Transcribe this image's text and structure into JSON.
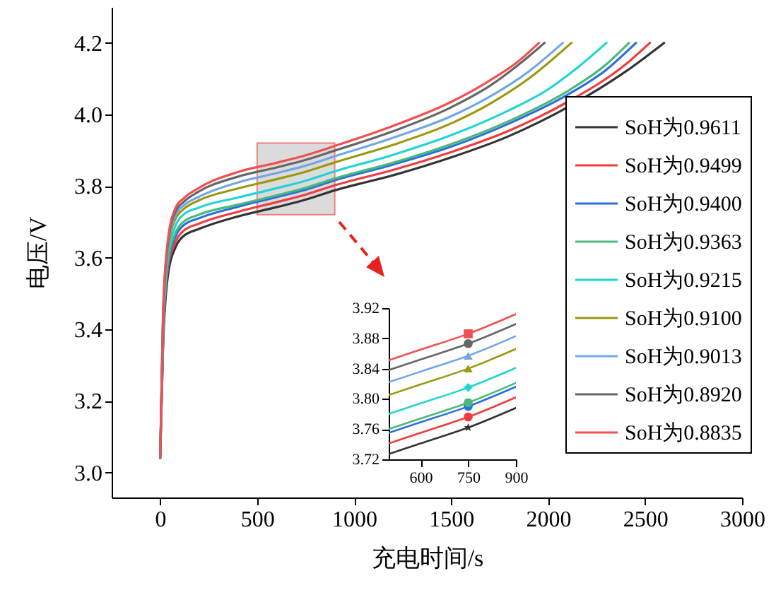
{
  "chart_data": [
    {
      "type": "line",
      "xlabel": "充电时间/s",
      "ylabel": "电压/V",
      "xlim": [
        -250,
        3000
      ],
      "ylim": [
        2.93,
        4.3
      ],
      "xticks": [
        0,
        500,
        1000,
        1500,
        2000,
        2500,
        3000
      ],
      "yticks": [
        {
          "value": 3,
          "label": "3.0"
        },
        3.2,
        3.4,
        3.6,
        3.8,
        {
          "value": 4,
          "label": "4.0"
        },
        4.2
      ],
      "grid": false,
      "legend": "right",
      "series": [
        {
          "name": "SoH为0.9611",
          "color": "#333333",
          "x": [
            0,
            15,
            40,
            80,
            120,
            200,
            400,
            600,
            750,
            900,
            1200,
            1500,
            1800,
            2100,
            2400,
            2598
          ],
          "values": [
            3.04,
            3.35,
            3.55,
            3.63,
            3.66,
            3.68,
            3.715,
            3.741,
            3.762,
            3.788,
            3.83,
            3.88,
            3.94,
            4.02,
            4.12,
            4.2
          ]
        },
        {
          "name": "SoH为0.9499",
          "color": "#f03c3c",
          "x": [
            0,
            15,
            40,
            80,
            120,
            200,
            400,
            600,
            750,
            900,
            1200,
            1500,
            1800,
            2100,
            2400,
            2525
          ],
          "values": [
            3.04,
            3.37,
            3.57,
            3.645,
            3.675,
            3.695,
            3.728,
            3.755,
            3.776,
            3.802,
            3.845,
            3.895,
            3.955,
            4.035,
            4.14,
            4.2
          ]
        },
        {
          "name": "SoH为0.9400",
          "color": "#2a6fe0",
          "x": [
            0,
            15,
            40,
            80,
            120,
            200,
            400,
            600,
            750,
            900,
            1200,
            1500,
            1800,
            2100,
            2300,
            2453
          ],
          "values": [
            3.04,
            3.38,
            3.58,
            3.66,
            3.69,
            3.71,
            3.742,
            3.769,
            3.79,
            3.816,
            3.86,
            3.91,
            3.975,
            4.055,
            4.125,
            4.2
          ]
        },
        {
          "name": "SoH为0.9363",
          "color": "#4cb87a",
          "x": [
            0,
            15,
            40,
            80,
            120,
            200,
            400,
            600,
            750,
            900,
            1200,
            1500,
            1800,
            2100,
            2300,
            2417
          ],
          "values": [
            3.04,
            3.39,
            3.59,
            3.67,
            3.7,
            3.72,
            3.748,
            3.774,
            3.795,
            3.821,
            3.865,
            3.917,
            3.982,
            4.065,
            4.14,
            4.2
          ]
        },
        {
          "name": "SoH为0.9215",
          "color": "#22d4d4",
          "x": [
            0,
            15,
            40,
            80,
            120,
            200,
            400,
            600,
            750,
            900,
            1200,
            1500,
            1800,
            2000,
            2150,
            2301
          ],
          "values": [
            3.04,
            3.4,
            3.6,
            3.69,
            3.72,
            3.74,
            3.768,
            3.794,
            3.815,
            3.841,
            3.887,
            3.942,
            4.012,
            4.07,
            4.13,
            4.2
          ]
        },
        {
          "name": "SoH为0.9100",
          "color": "#9a9a10",
          "x": [
            0,
            15,
            40,
            80,
            120,
            200,
            400,
            600,
            750,
            900,
            1200,
            1500,
            1700,
            1900,
            2120
          ],
          "values": [
            3.04,
            3.42,
            3.62,
            3.71,
            3.735,
            3.76,
            3.793,
            3.819,
            3.84,
            3.866,
            3.915,
            3.975,
            4.03,
            4.1,
            4.2
          ]
        },
        {
          "name": "SoH为0.9013",
          "color": "#72a6e6",
          "x": [
            0,
            15,
            40,
            80,
            120,
            200,
            400,
            600,
            750,
            900,
            1200,
            1500,
            1700,
            1900,
            2076
          ],
          "values": [
            3.04,
            3.43,
            3.63,
            3.72,
            3.745,
            3.77,
            3.81,
            3.836,
            3.857,
            3.883,
            3.935,
            3.995,
            4.05,
            4.12,
            4.2
          ]
        },
        {
          "name": "SoH为0.8920",
          "color": "#666666",
          "x": [
            0,
            15,
            40,
            80,
            120,
            200,
            400,
            600,
            750,
            900,
            1200,
            1500,
            1700,
            1850,
            1982
          ],
          "values": [
            3.04,
            3.44,
            3.64,
            3.73,
            3.755,
            3.785,
            3.826,
            3.852,
            3.873,
            3.899,
            3.953,
            4.02,
            4.08,
            4.14,
            4.2
          ]
        },
        {
          "name": "SoH为0.8835",
          "color": "#f05050",
          "x": [
            0,
            15,
            40,
            80,
            120,
            200,
            400,
            600,
            750,
            900,
            1200,
            1500,
            1700,
            1850,
            1953
          ],
          "values": [
            3.04,
            3.45,
            3.65,
            3.74,
            3.765,
            3.795,
            3.839,
            3.865,
            3.886,
            3.912,
            3.968,
            4.035,
            4.095,
            4.15,
            4.2
          ]
        }
      ]
    },
    {
      "type": "line",
      "x": [
        500,
        600,
        750,
        900
      ],
      "xlim": [
        500,
        900
      ],
      "ylim": [
        3.72,
        3.92
      ],
      "xticks": [
        600,
        750,
        900
      ],
      "yticks": [
        3.72,
        3.76,
        {
          "value": 3.8,
          "label": "3.80"
        },
        3.84,
        3.88,
        3.92
      ],
      "grid": false,
      "series": [
        {
          "color": "#333333",
          "values": [
            3.727,
            3.741,
            3.762,
            3.788
          ]
        },
        {
          "color": "#f03c3c",
          "values": [
            3.741,
            3.755,
            3.776,
            3.802
          ]
        },
        {
          "color": "#2a6fe0",
          "values": [
            3.755,
            3.769,
            3.79,
            3.816
          ]
        },
        {
          "color": "#4cb87a",
          "values": [
            3.76,
            3.774,
            3.795,
            3.821
          ]
        },
        {
          "color": "#22d4d4",
          "values": [
            3.78,
            3.794,
            3.815,
            3.841
          ]
        },
        {
          "color": "#9a9a10",
          "values": [
            3.805,
            3.819,
            3.84,
            3.866
          ]
        },
        {
          "color": "#72a6e6",
          "values": [
            3.822,
            3.836,
            3.857,
            3.883
          ]
        },
        {
          "color": "#666666",
          "values": [
            3.838,
            3.852,
            3.873,
            3.899
          ]
        },
        {
          "color": "#f05050",
          "values": [
            3.851,
            3.865,
            3.886,
            3.912
          ]
        },
        {
          "type": "scatter",
          "marker": "star",
          "color": "#333333",
          "x": [
            750
          ],
          "values": [
            3.762
          ]
        },
        {
          "type": "scatter",
          "marker": "circle",
          "color": "#f03c3c",
          "x": [
            750
          ],
          "values": [
            3.776
          ]
        },
        {
          "type": "scatter",
          "marker": "circle",
          "color": "#2a6fe0",
          "x": [
            750
          ],
          "values": [
            3.79
          ]
        },
        {
          "type": "scatter",
          "marker": "circle",
          "color": "#4cb87a",
          "x": [
            750
          ],
          "values": [
            3.795
          ]
        },
        {
          "type": "scatter",
          "marker": "diamond",
          "color": "#22d4d4",
          "x": [
            750
          ],
          "values": [
            3.815
          ]
        },
        {
          "type": "scatter",
          "marker": "triangle",
          "color": "#9a9a10",
          "x": [
            750
          ],
          "values": [
            3.84
          ]
        },
        {
          "type": "scatter",
          "marker": "triangle",
          "color": "#72a6e6",
          "x": [
            750
          ],
          "values": [
            3.857
          ]
        },
        {
          "type": "scatter",
          "marker": "circle",
          "color": "#666666",
          "x": [
            750
          ],
          "values": [
            3.873
          ]
        },
        {
          "type": "scatter",
          "marker": "square",
          "color": "#f05050",
          "x": [
            750
          ],
          "values": [
            3.886
          ]
        }
      ]
    }
  ]
}
